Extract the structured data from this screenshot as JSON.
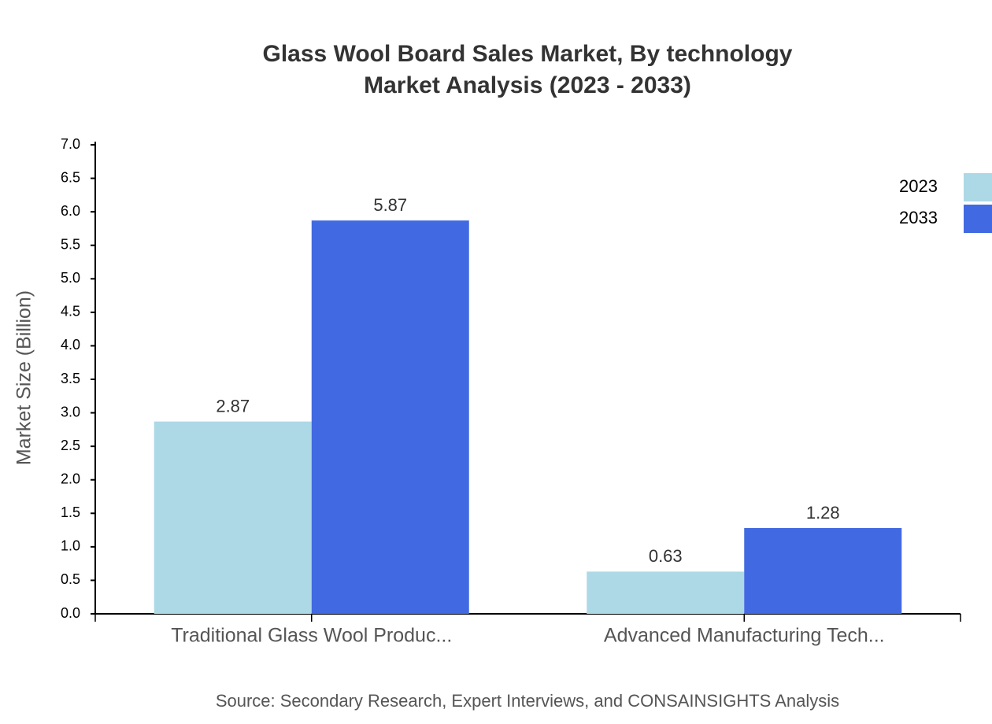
{
  "chart_data": {
    "type": "bar",
    "title": [
      "Glass Wool Board Sales Market, By technology",
      "Market Analysis (2023 - 2033)"
    ],
    "y_label": "Market Size (Billion)",
    "source": "Source: Secondary Research, Expert Interviews, and CONSAINSIGHTS Analysis",
    "categories": [
      "Traditional Glass Wool Produc...",
      "Advanced Manufacturing Tech..."
    ],
    "series": [
      {
        "name": "2023",
        "color": "#add8e6",
        "values": [
          2.87,
          0.63
        ]
      },
      {
        "name": "2033",
        "color": "#4169e1",
        "values": [
          5.87,
          1.28
        ]
      }
    ],
    "ylim": [
      0,
      7
    ],
    "yticks": [
      {
        "value": 0,
        "label": "0.0"
      },
      0.5,
      {
        "value": 1,
        "label": "1.0"
      },
      1.5,
      {
        "value": 2,
        "label": "2.0"
      },
      2.5,
      {
        "value": 3,
        "label": "3.0"
      },
      3.5,
      {
        "value": 4,
        "label": "4.0"
      },
      4.5,
      {
        "value": 5,
        "label": "5.0"
      },
      5.5,
      {
        "value": 6,
        "label": "6.0"
      },
      6.5,
      {
        "value": 7,
        "label": "7.0"
      }
    ],
    "legend": "top-right"
  }
}
